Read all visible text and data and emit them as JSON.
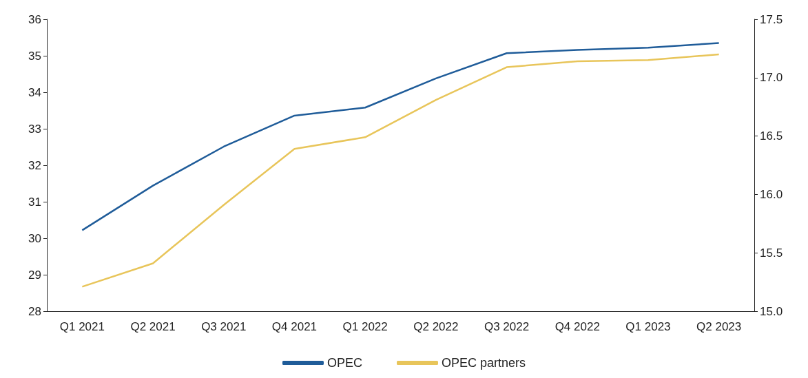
{
  "chart_data": {
    "type": "line",
    "categories": [
      "Q1 2021",
      "Q2 2021",
      "Q3 2021",
      "Q4 2021",
      "Q1 2022",
      "Q2 2022",
      "Q3 2022",
      "Q4 2022",
      "Q1 2023",
      "Q2 2023"
    ],
    "series": [
      {
        "name": "OPEC",
        "color": "#1f5c99",
        "values": [
          30.22,
          31.44,
          32.51,
          33.36,
          33.58,
          34.38,
          35.07,
          35.16,
          35.22,
          35.35
        ]
      },
      {
        "name": "OPEC partners",
        "color": "#e8c55a",
        "axis": "y2",
        "values": [
          15.21,
          15.41,
          15.91,
          16.39,
          16.49,
          16.81,
          17.09,
          17.14,
          17.15,
          17.2
        ]
      }
    ],
    "ylim": [
      28,
      36
    ],
    "yticks": [
      28,
      29,
      30,
      31,
      32,
      33,
      34,
      35,
      36
    ],
    "y2lim": [
      15,
      17.5
    ],
    "y2ticks": [
      {
        "value": 15,
        "label": "15.0"
      },
      {
        "value": 15.5,
        "label": "15.5"
      },
      {
        "value": 16,
        "label": "16.0"
      },
      {
        "value": 16.5,
        "label": "16.5"
      },
      {
        "value": 17,
        "label": "17.0"
      },
      {
        "value": 17.5,
        "label": "17.5"
      }
    ],
    "grid": false,
    "legend": "bottom",
    "marker": "none",
    "line_style": "solid"
  }
}
